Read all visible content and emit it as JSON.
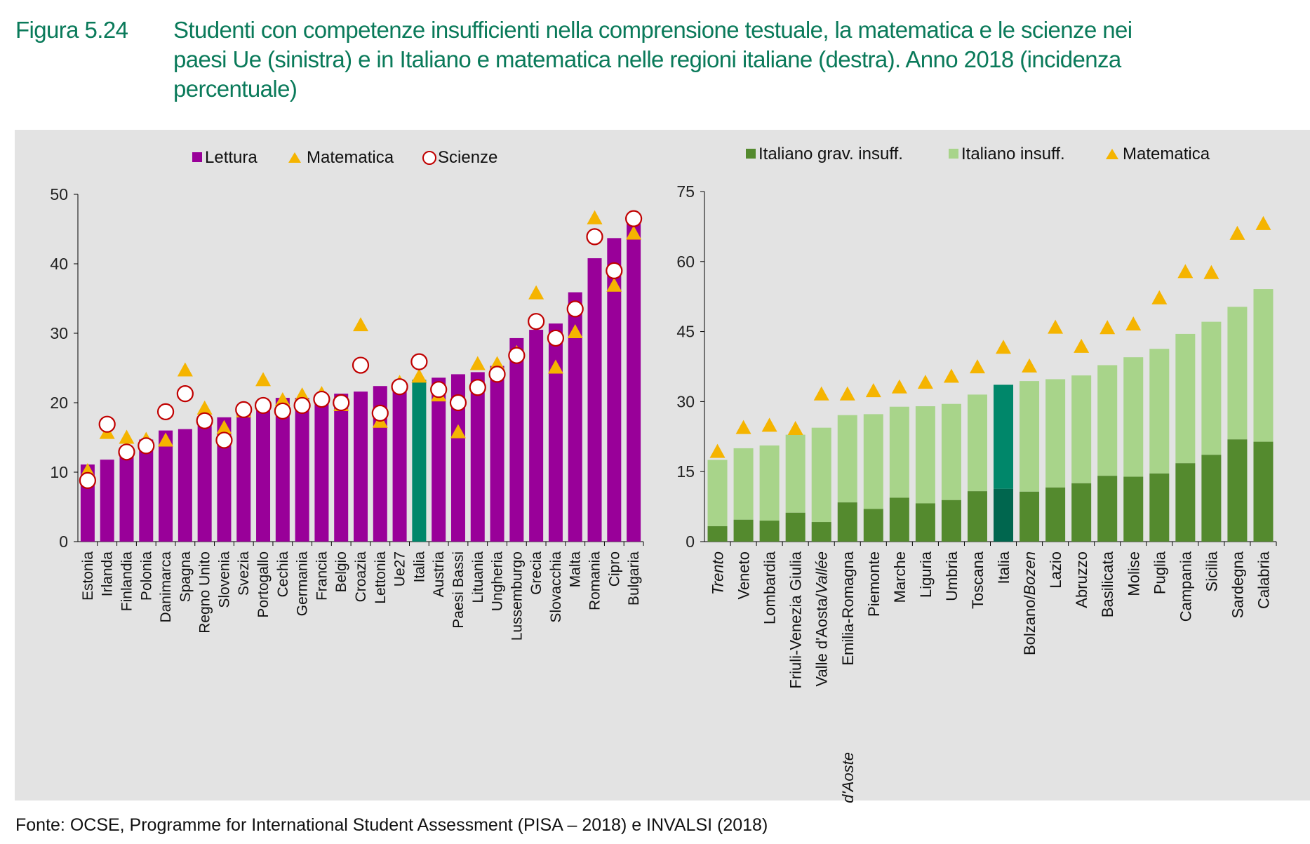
{
  "header": {
    "figure_label": "Figura 5.24",
    "title_lines": [
      "Studenti con competenze insufficienti nella comprensione testuale, la matematica e le scienze nei",
      "paesi Ue (sinistra) e in Italiano e matematica nelle regioni italiane (destra). Anno 2018",
      "percentuale)"
    ],
    "title_suffix": " (incidenza"
  },
  "source": "Fonte: OCSE, Programme for International Student Assessment (PISA – 2018) e INVALSI (2018)",
  "colors": {
    "lettura": "#990099",
    "italia_left": "#00876a",
    "grav": "#548a2e",
    "insuff": "#a8d48a",
    "italia_grav": "#00664e",
    "italia_insuff": "#00876a",
    "triangle": "#f5b400",
    "circle": "#c00000"
  },
  "chart_data": [
    {
      "type": "bar",
      "title": "",
      "legend": [
        "Lettura",
        "Matematica",
        "Scienze"
      ],
      "legend_position": "top-center",
      "ylim": [
        0,
        50
      ],
      "yticks": [
        0,
        10,
        20,
        30,
        40,
        50
      ],
      "categories": [
        "Estonia",
        "Irlanda",
        "Finlandia",
        "Polonia",
        "Danimarca",
        "Spagna",
        "Regno Unito",
        "Slovenia",
        "Svezia",
        "Portogallo",
        "Cechia",
        "Germania",
        "Francia",
        "Belgio",
        "Croazia",
        "Lettonia",
        "Ue27",
        "Italia",
        "Austria",
        "Paesi Bassi",
        "Lituania",
        "Ungheria",
        "Lussemburgo",
        "Grecia",
        "Slovacchia",
        "Malta",
        "Romania",
        "Cipro",
        "Bulgaria"
      ],
      "highlight": "Italia",
      "series": [
        {
          "name": "Lettura",
          "kind": "bar",
          "values": [
            11.1,
            11.8,
            13.5,
            14.7,
            16.0,
            16.2,
            17.3,
            17.9,
            18.4,
            20.2,
            20.7,
            20.7,
            20.9,
            21.3,
            21.6,
            22.4,
            22.5,
            23.3,
            23.6,
            24.1,
            24.4,
            25.3,
            29.3,
            30.5,
            31.4,
            35.9,
            40.8,
            43.7,
            47.1
          ]
        },
        {
          "name": "Matematica",
          "kind": "triangle",
          "values": [
            10.2,
            15.7,
            15.0,
            14.7,
            14.6,
            24.7,
            19.2,
            16.4,
            18.8,
            23.3,
            20.4,
            21.1,
            21.3,
            19.7,
            31.2,
            17.3,
            22.9,
            23.8,
            21.1,
            15.8,
            25.6,
            25.6,
            27.2,
            35.8,
            25.1,
            30.2,
            46.6,
            36.9,
            44.4
          ]
        },
        {
          "name": "Scienze",
          "kind": "circle",
          "values": [
            8.8,
            16.9,
            12.9,
            13.8,
            18.7,
            21.3,
            17.4,
            14.6,
            19.0,
            19.6,
            18.8,
            19.6,
            20.5,
            20.0,
            25.4,
            18.5,
            22.3,
            25.9,
            21.9,
            20.0,
            22.2,
            24.1,
            26.8,
            31.7,
            29.3,
            33.5,
            43.9,
            39.0,
            46.5
          ]
        }
      ]
    },
    {
      "type": "bar",
      "title": "",
      "legend": [
        "Italiano grav. insuff.",
        "Italiano insuff.",
        "Matematica"
      ],
      "legend_position": "top-center",
      "ylim": [
        0,
        75
      ],
      "yticks": [
        0,
        15,
        30,
        45,
        60,
        75
      ],
      "categories": [
        "Trento",
        "Veneto",
        "Lombardia",
        "Friuli-Venezia Giulia",
        "Valle d'Aosta/Vallée d'Aoste",
        "Emilia-Romagna",
        "Piemonte",
        "Marche",
        "Liguria",
        "Umbria",
        "Toscana",
        "Italia",
        "Bolzano/Bozen",
        "Lazio",
        "Abruzzo",
        "Basilicata",
        "Molise",
        "Puglia",
        "Campania",
        "Sicilia",
        "Sardegna",
        "Calabria"
      ],
      "italic_words": [
        "Trento",
        "Vallée",
        "d'Aoste",
        "Bozen"
      ],
      "highlight": "Italia",
      "series": [
        {
          "name": "Italiano grav. insuff.",
          "kind": "bar",
          "values": [
            3.3,
            4.7,
            4.5,
            6.2,
            4.2,
            8.4,
            7.0,
            9.4,
            8.2,
            8.9,
            10.8,
            11.3,
            10.7,
            11.6,
            12.5,
            14.1,
            13.9,
            14.6,
            16.8,
            18.6,
            21.9,
            21.4
          ]
        },
        {
          "name": "Italiano insuff.",
          "kind": "bar-total",
          "values": [
            17.5,
            20.0,
            20.6,
            22.9,
            24.4,
            27.1,
            27.3,
            28.9,
            29.0,
            29.5,
            31.5,
            33.6,
            34.4,
            34.8,
            35.6,
            37.8,
            39.5,
            41.3,
            44.5,
            47.1,
            50.3,
            54.1
          ]
        },
        {
          "name": "Matematica",
          "kind": "triangle",
          "values": [
            19.3,
            24.4,
            24.9,
            24.2,
            31.6,
            31.6,
            32.3,
            33.1,
            34.1,
            35.4,
            37.4,
            41.6,
            37.6,
            45.9,
            41.8,
            45.8,
            46.6,
            52.2,
            57.8,
            57.6,
            66.0,
            68.1
          ]
        }
      ]
    }
  ]
}
